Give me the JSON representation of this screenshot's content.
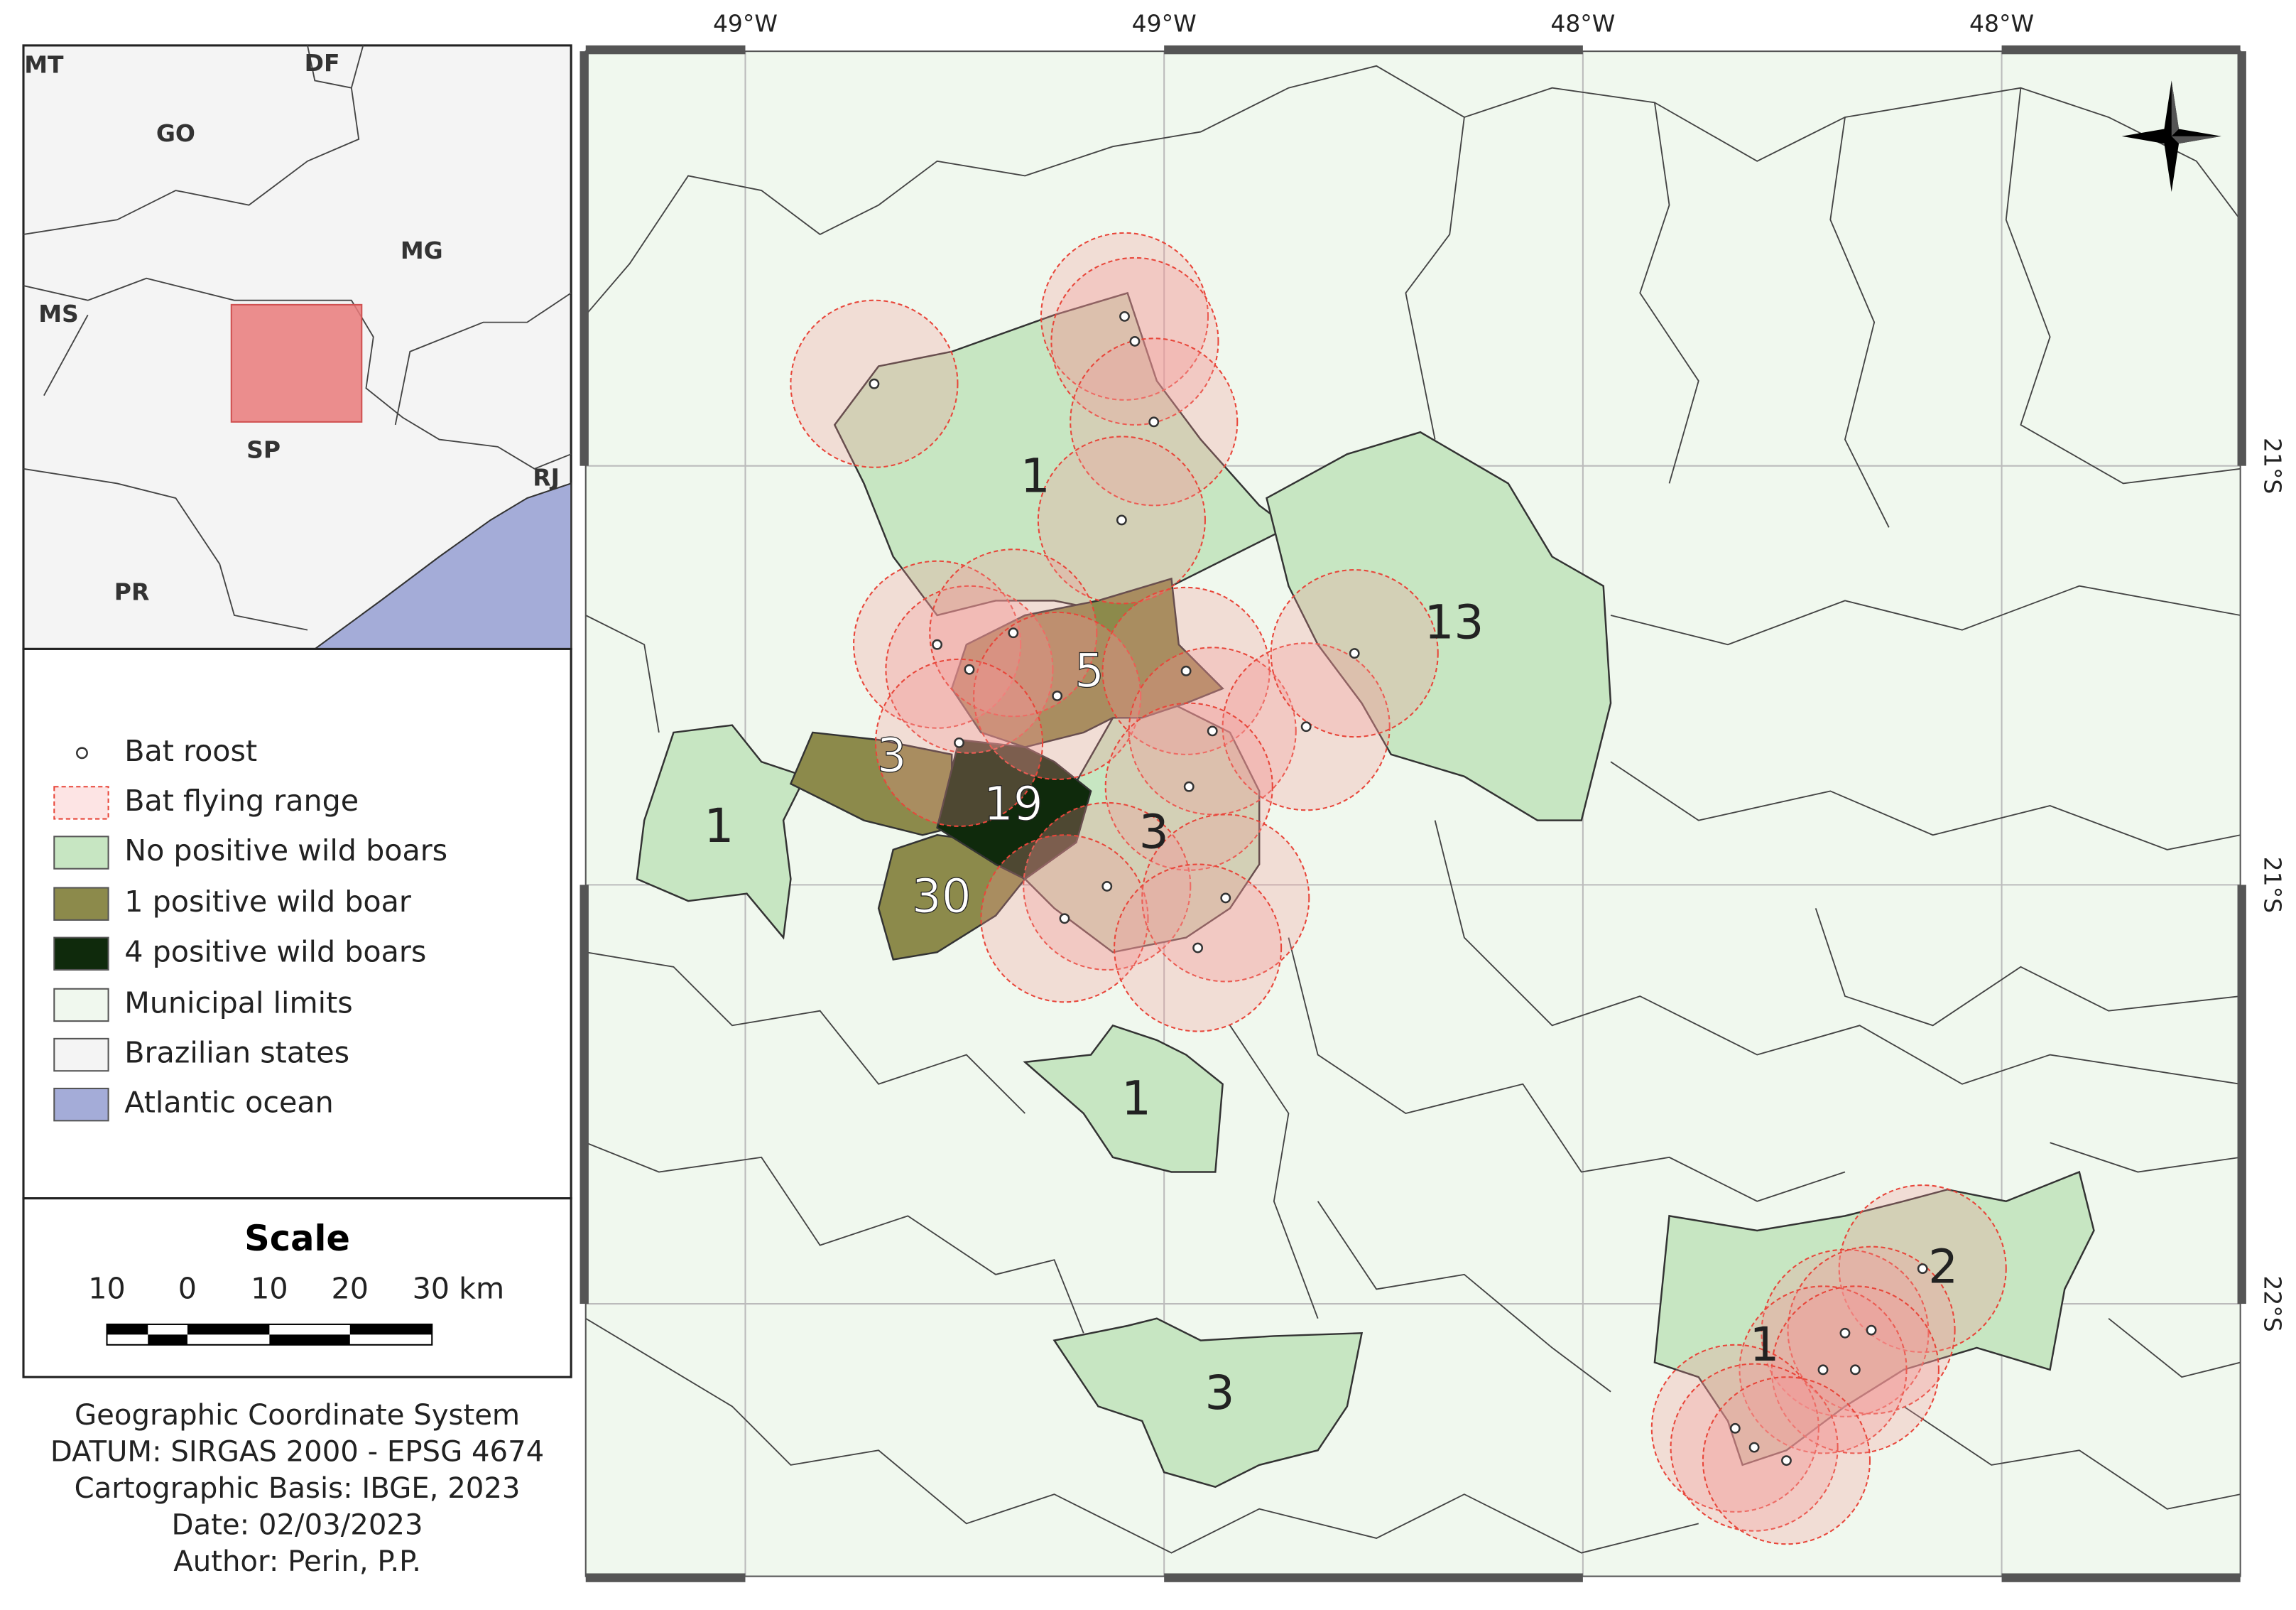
{
  "inset": {
    "labels": [
      "MT",
      "DF",
      "GO",
      "MG",
      "MS",
      "SP",
      "RJ",
      "PR"
    ]
  },
  "legend": {
    "items": [
      "Bat roost",
      "Bat flying range",
      "No positive wild boars",
      "1 positive wild boar",
      "4 positive wild boars",
      "Municipal limits",
      "Brazilian states",
      "Atlantic ocean"
    ]
  },
  "scale": {
    "title": "Scale",
    "labels": [
      "10",
      "0",
      "10",
      "20",
      "30 km"
    ]
  },
  "credits": [
    "Geographic Coordinate System",
    "DATUM: SIRGAS 2000 - EPSG 4674",
    "Cartographic Basis: IBGE, 2023",
    "Date: 02/03/2023",
    "Author: Perin, P.P."
  ],
  "map": {
    "top_labels": [
      "49°W",
      "49°W",
      "48°W",
      "48°W"
    ],
    "right_labels": [
      "21°S",
      "21°S",
      "22°S"
    ],
    "counts": [
      1,
      13,
      5,
      3,
      19,
      3,
      1,
      30,
      1,
      3,
      1,
      2
    ]
  }
}
